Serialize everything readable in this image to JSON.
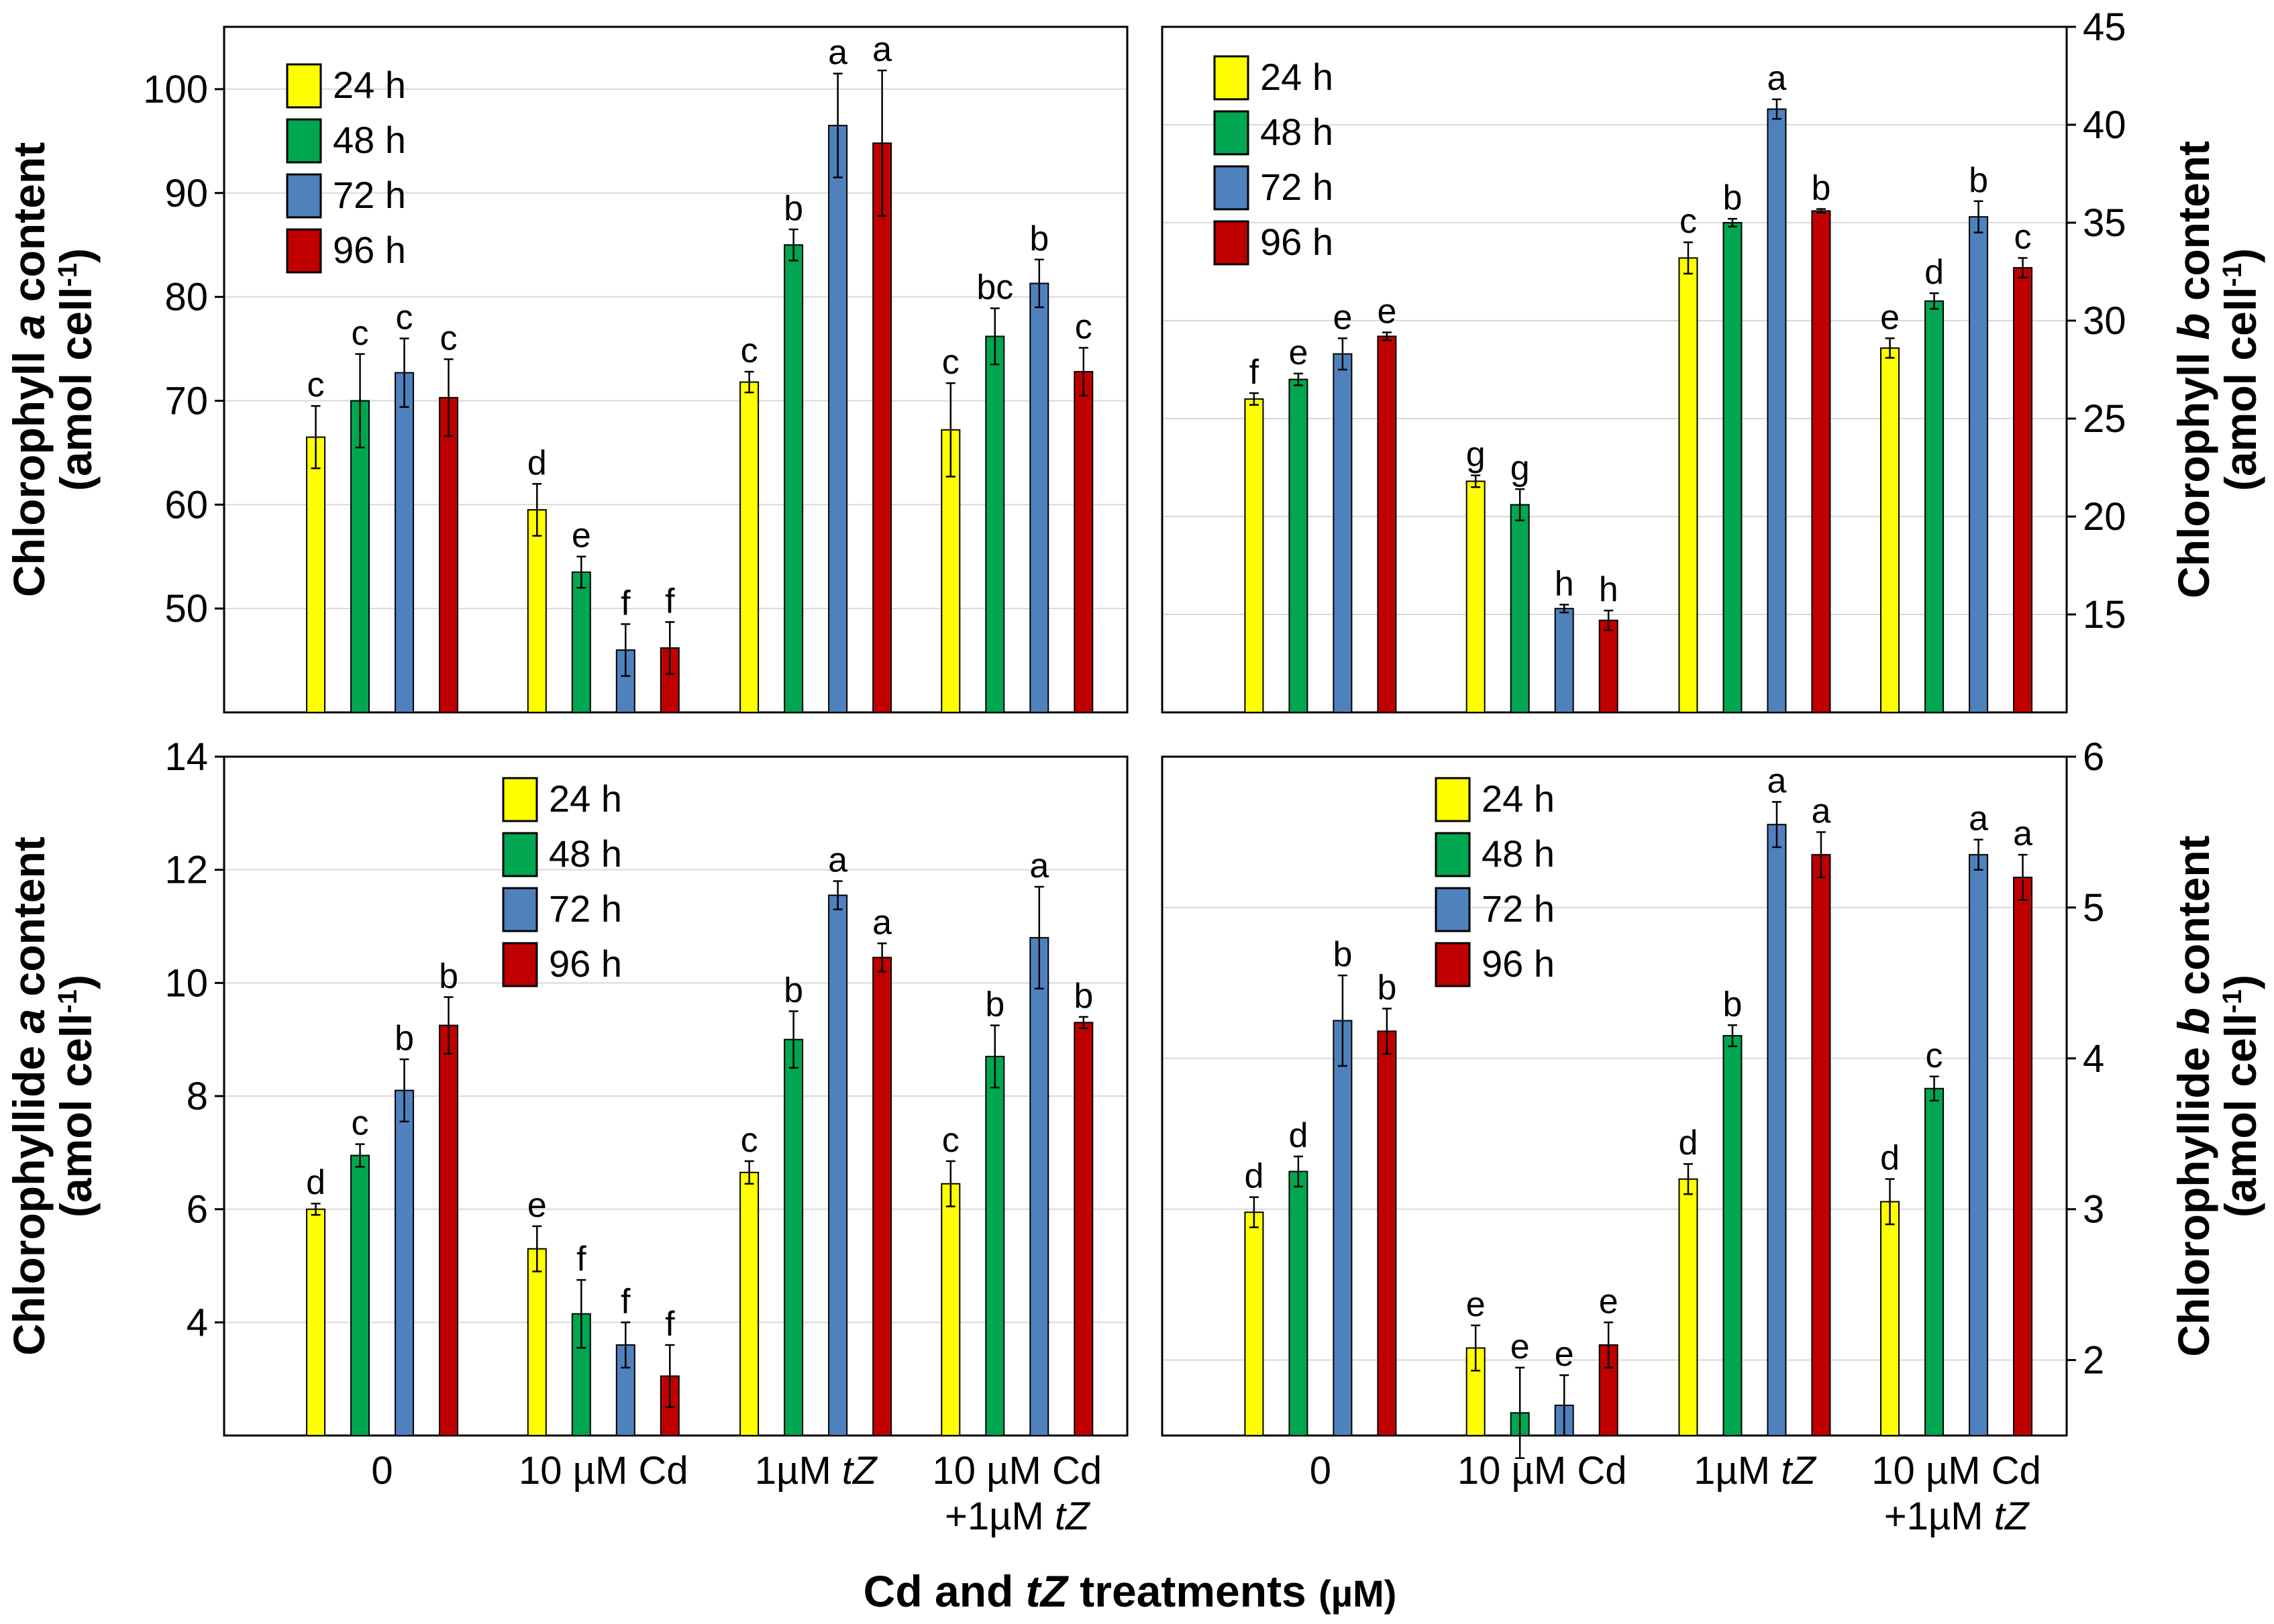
{
  "chart_data": [
    {
      "type": "bar",
      "panel": "top-left",
      "ylabel_line1": [
        "Chlorophyll ",
        "a",
        " content"
      ],
      "ylabel_line2": [
        "(amol cell",
        "-1",
        ")"
      ],
      "yaxis_side": "left",
      "ylim": [
        40,
        106
      ],
      "yticks": [
        50,
        60,
        70,
        80,
        90,
        100
      ],
      "grid": true,
      "legend": "top-left",
      "categories": [
        "0",
        "10 µM Cd",
        "1µM tZ",
        "10 µM Cd +1µM tZ"
      ],
      "series": [
        {
          "name": "24 h",
          "values": [
            66.5,
            59.5,
            71.8,
            67.2
          ],
          "errors": [
            3.0,
            2.5,
            1.0,
            4.5
          ],
          "letters": [
            "c",
            "d",
            "c",
            "c"
          ]
        },
        {
          "name": "48 h",
          "values": [
            70.0,
            53.5,
            85.0,
            76.2
          ],
          "errors": [
            4.5,
            1.5,
            1.5,
            2.7
          ],
          "letters": [
            "c",
            "e",
            "b",
            "bc"
          ]
        },
        {
          "name": "72 h",
          "values": [
            72.7,
            46.0,
            96.5,
            81.3
          ],
          "errors": [
            3.3,
            2.5,
            5.0,
            2.3
          ],
          "letters": [
            "c",
            "f",
            "a",
            "b"
          ]
        },
        {
          "name": "96 h",
          "values": [
            70.3,
            46.2,
            94.8,
            72.8
          ],
          "errors": [
            3.7,
            2.5,
            7.0,
            2.3
          ],
          "letters": [
            "c",
            "f",
            "a",
            "c"
          ]
        }
      ]
    },
    {
      "type": "bar",
      "panel": "top-right",
      "ylabel_line1": [
        "Chlorophyll ",
        "b",
        " content"
      ],
      "ylabel_line2": [
        "(amol cell",
        "-1",
        ")"
      ],
      "yaxis_side": "right",
      "ylim": [
        10,
        45
      ],
      "yticks": [
        15,
        20,
        25,
        30,
        35,
        40,
        45
      ],
      "grid": true,
      "legend": "top-left",
      "categories": [
        "0",
        "10 µM Cd",
        "1µM tZ",
        "10 µM Cd +1µM tZ"
      ],
      "series": [
        {
          "name": "24 h",
          "values": [
            26.0,
            21.8,
            33.2,
            28.6
          ],
          "errors": [
            0.3,
            0.3,
            0.8,
            0.5
          ],
          "letters": [
            "f",
            "g",
            "c",
            "e"
          ]
        },
        {
          "name": "48 h",
          "values": [
            27.0,
            20.6,
            35.0,
            31.0
          ],
          "errors": [
            0.3,
            0.8,
            0.2,
            0.4
          ],
          "letters": [
            "e",
            "g",
            "b",
            "d"
          ]
        },
        {
          "name": "72 h",
          "values": [
            28.3,
            15.3,
            40.8,
            35.3
          ],
          "errors": [
            0.8,
            0.2,
            0.5,
            0.8
          ],
          "letters": [
            "e",
            "h",
            "a",
            "b"
          ]
        },
        {
          "name": "96 h",
          "values": [
            29.2,
            14.7,
            35.6,
            32.7
          ],
          "errors": [
            0.2,
            0.5,
            0.1,
            0.5
          ],
          "letters": [
            "e",
            "h",
            "b",
            "c"
          ]
        }
      ]
    },
    {
      "type": "bar",
      "panel": "bottom-left",
      "ylabel_line1": [
        "Chlorophyllide ",
        "a",
        " content"
      ],
      "ylabel_line2": [
        "(amol cell",
        "-1",
        ")"
      ],
      "yaxis_side": "left",
      "ylim": [
        2,
        14
      ],
      "yticks": [
        4,
        6,
        8,
        10,
        12,
        14
      ],
      "grid": true,
      "legend": "top-center",
      "categories": [
        "0",
        "10 µM Cd",
        "1µM tZ",
        "10 µM Cd +1µM tZ"
      ],
      "series": [
        {
          "name": "24 h",
          "values": [
            6.0,
            5.3,
            6.65,
            6.45
          ],
          "errors": [
            0.1,
            0.4,
            0.2,
            0.4
          ],
          "letters": [
            "d",
            "e",
            "c",
            "c"
          ]
        },
        {
          "name": "48 h",
          "values": [
            6.95,
            4.15,
            9.0,
            8.7
          ],
          "errors": [
            0.2,
            0.6,
            0.5,
            0.55
          ],
          "letters": [
            "c",
            "f",
            "b",
            "b"
          ]
        },
        {
          "name": "72 h",
          "values": [
            8.1,
            3.6,
            11.55,
            10.8
          ],
          "errors": [
            0.55,
            0.4,
            0.25,
            0.9
          ],
          "letters": [
            "b",
            "f",
            "a",
            "a"
          ]
        },
        {
          "name": "96 h",
          "values": [
            9.25,
            3.05,
            10.45,
            9.3
          ],
          "errors": [
            0.5,
            0.55,
            0.25,
            0.1
          ],
          "letters": [
            "b",
            "f",
            "a",
            "b"
          ]
        }
      ]
    },
    {
      "type": "bar",
      "panel": "bottom-right",
      "ylabel_line1": [
        "Chlorophyllide ",
        "b",
        " content"
      ],
      "ylabel_line2": [
        "(amol cell",
        "-1",
        ")"
      ],
      "yaxis_side": "right",
      "ylim": [
        1.5,
        6
      ],
      "yticks": [
        2,
        3,
        4,
        5,
        6
      ],
      "grid": true,
      "legend": "top-left",
      "categories": [
        "0",
        "10 µM Cd",
        "1µM tZ",
        "10 µM Cd +1µM tZ"
      ],
      "series": [
        {
          "name": "24 h",
          "values": [
            2.98,
            2.08,
            3.2,
            3.05
          ],
          "errors": [
            0.1,
            0.15,
            0.1,
            0.15
          ],
          "letters": [
            "d",
            "e",
            "d",
            "d"
          ]
        },
        {
          "name": "48 h",
          "values": [
            3.25,
            1.65,
            4.15,
            3.8
          ],
          "errors": [
            0.1,
            0.3,
            0.07,
            0.08
          ],
          "letters": [
            "d",
            "e",
            "b",
            "c"
          ]
        },
        {
          "name": "72 h",
          "values": [
            4.25,
            1.7,
            5.55,
            5.35
          ],
          "errors": [
            0.3,
            0.2,
            0.15,
            0.1
          ],
          "letters": [
            "b",
            "e",
            "a",
            "a"
          ]
        },
        {
          "name": "96 h",
          "values": [
            4.18,
            2.1,
            5.35,
            5.2
          ],
          "errors": [
            0.15,
            0.15,
            0.15,
            0.15
          ],
          "letters": [
            "b",
            "e",
            "a",
            "a"
          ]
        }
      ]
    }
  ],
  "xaxis_title_parts": [
    "Cd and ",
    "tZ",
    " treatments ",
    "(µM)"
  ],
  "category_labels": [
    {
      "line1": [
        "0"
      ],
      "line2": []
    },
    {
      "line1": [
        "10 µM Cd"
      ],
      "line2": []
    },
    {
      "line1": [
        "1µM ",
        "tZ"
      ],
      "line2": []
    },
    {
      "line1": [
        "10 µM Cd"
      ],
      "line2": [
        "+1µM ",
        "tZ"
      ]
    }
  ],
  "colors": {
    "24 h": "#FFFF00",
    "48 h": "#00A650",
    "72 h": "#4F81BD",
    "96 h": "#C00000",
    "grid": "#d9d9d9",
    "axis": "#000000"
  }
}
